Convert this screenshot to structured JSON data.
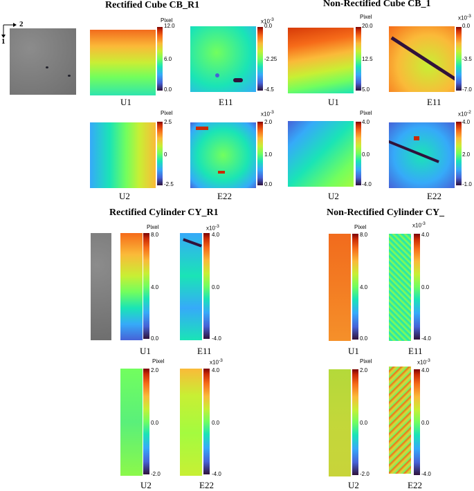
{
  "titles": {
    "rect_cube": "Rectified Cube CB_R1",
    "nonrect_cube": "Non-Rectified Cube CB_1",
    "rect_cyl": "Rectified Cylinder CY_R1",
    "nonrect_cyl": "Non-Rectified Cylinder CY_"
  },
  "axes": {
    "x": "2",
    "y": "1"
  },
  "labels": {
    "u1": "U1",
    "u2": "U2",
    "e11": "E11",
    "e22": "E22"
  },
  "units": {
    "pixel": "Pixel",
    "x10_3": "x10",
    "x10_3_exp": "-3",
    "x10_2_exp": "-2"
  },
  "cb1": {
    "u1": [
      "12.0",
      "6.0",
      "0.0"
    ],
    "e11": [
      "0.0",
      "-2.25",
      "-4.5"
    ],
    "u2": [
      "2.5",
      "0",
      "-2.5"
    ],
    "e22": [
      "2.0",
      "1.0",
      "0.0"
    ]
  },
  "cb2": {
    "u1": [
      "20.0",
      "12.5",
      "5.0"
    ],
    "e11": [
      "0.0",
      "-3.5",
      "-7.0"
    ],
    "u2": [
      "4.0",
      "0.0",
      "-4.0"
    ],
    "e22": [
      "4.0",
      "2.0",
      "-1.0"
    ]
  },
  "cy1": {
    "u1": [
      "8.0",
      "4.0",
      "0.0"
    ],
    "e11": [
      "4.0",
      "0.0",
      "-4.0"
    ],
    "u2": [
      "2.0",
      "0.0",
      "-2.0"
    ],
    "e22": [
      "4.0",
      "0.0",
      "-4.0"
    ]
  },
  "cy2": {
    "u1": [
      "8.0",
      "4.0",
      "0.0"
    ],
    "e11": [
      "4.0",
      "0.0",
      "-4.0"
    ],
    "u2": [
      "2.0",
      "0.0",
      "-2.0"
    ],
    "e22": [
      "4.0",
      "0.0",
      "-4.0"
    ]
  }
}
